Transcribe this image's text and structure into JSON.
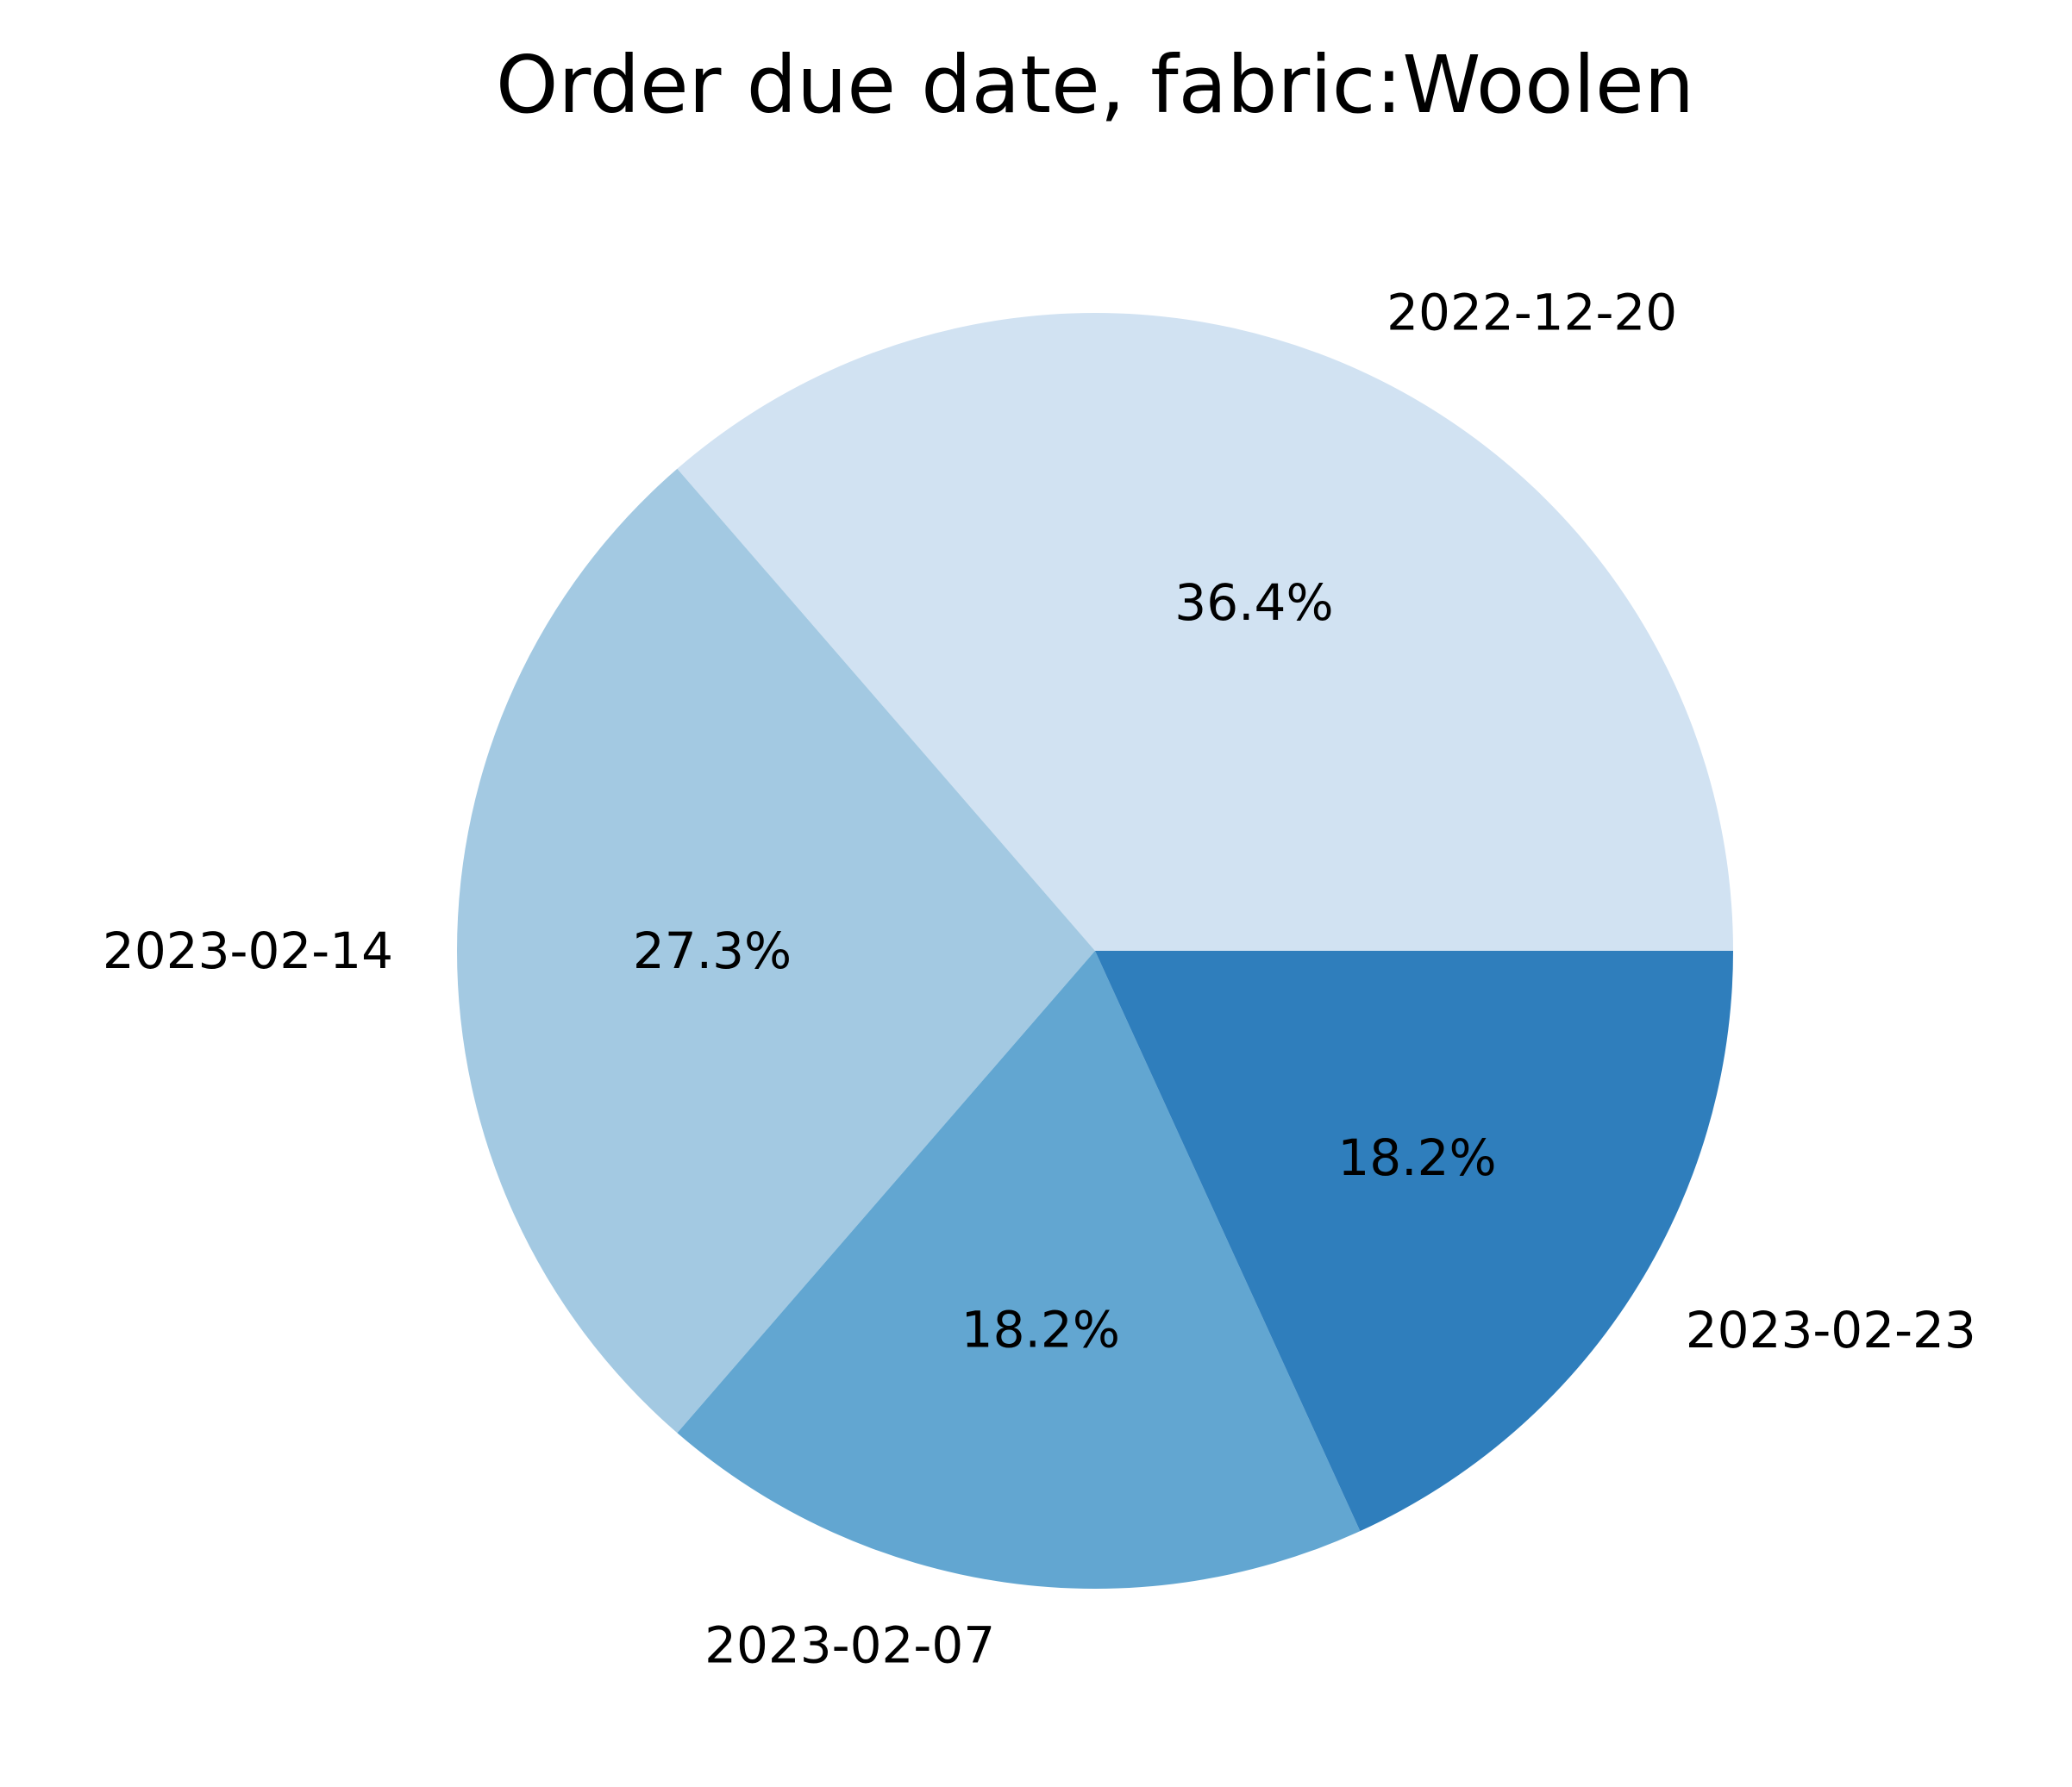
{
  "chart_data": {
    "type": "pie",
    "title": "Order due date, fabric:Woolen",
    "categories": [
      "2022-12-20",
      "2023-02-14",
      "2023-02-07",
      "2023-02-23"
    ],
    "values": [
      36.4,
      27.3,
      18.2,
      18.2
    ],
    "percent_labels": [
      "36.4%",
      "27.3%",
      "18.2%",
      "18.2%"
    ],
    "colors": [
      "#d1e2f2",
      "#a3c9e2",
      "#62a6d1",
      "#2f7ebc"
    ],
    "start_angle_deg": 0,
    "direction": "counterclockwise",
    "legend": "none"
  }
}
